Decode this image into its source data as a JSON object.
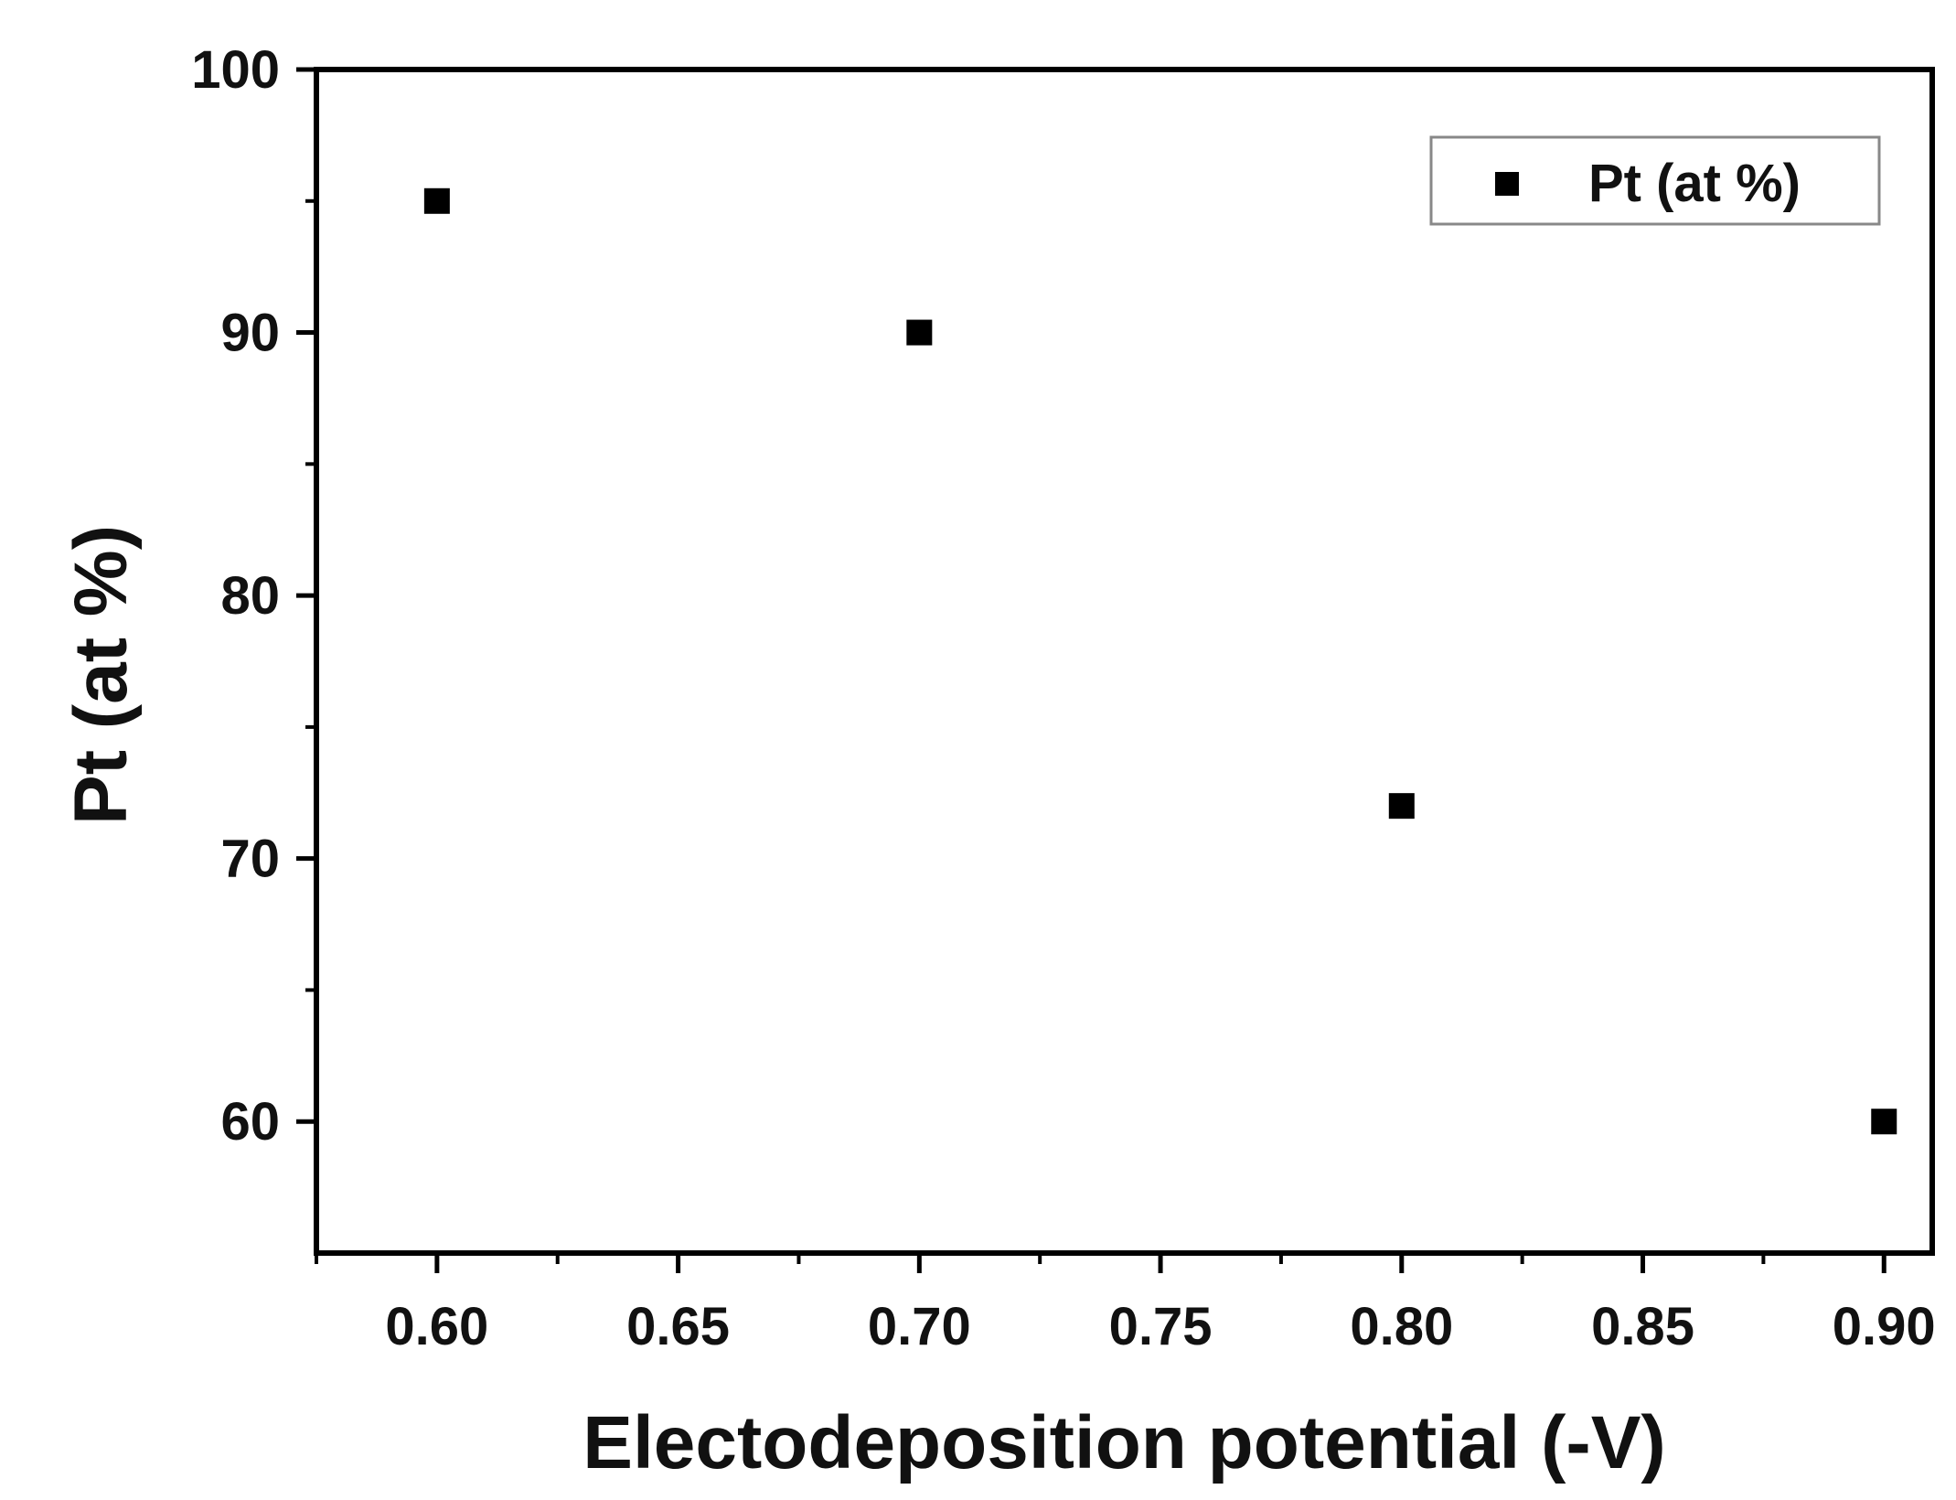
{
  "chart_data": {
    "type": "scatter",
    "title": "",
    "xlabel": "Electodeposition potential (-V)",
    "ylabel": "Pt (at %)",
    "xlim": [
      0.575,
      0.91
    ],
    "ylim": [
      55,
      100
    ],
    "xticks": [
      0.6,
      0.65,
      0.7,
      0.75,
      0.8,
      0.85,
      0.9
    ],
    "xtick_labels": [
      "0.60",
      "0.65",
      "0.70",
      "0.75",
      "0.80",
      "0.85",
      "0.90"
    ],
    "yticks": [
      60,
      70,
      80,
      90,
      100
    ],
    "ytick_labels": [
      "60",
      "70",
      "80",
      "90",
      "100"
    ],
    "grid": false,
    "legend_position": "top-right",
    "marker": "square",
    "marker_color": "#000000",
    "series": [
      {
        "name": "Pt (at %)",
        "x": [
          0.6,
          0.7,
          0.8,
          0.9
        ],
        "y": [
          95,
          90,
          72,
          60
        ]
      }
    ]
  }
}
